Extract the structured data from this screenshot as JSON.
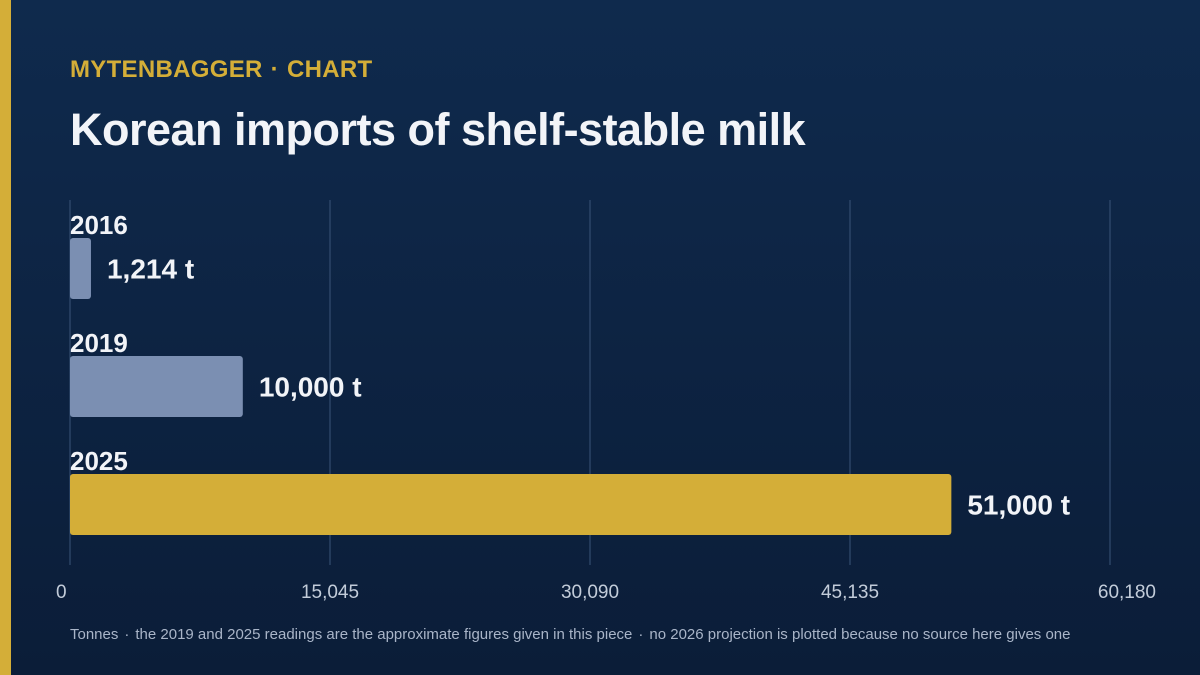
{
  "header": {
    "kicker_brand": "MYTENBAGGER",
    "kicker_separator": "·",
    "kicker_section": "CHART",
    "title": "Korean imports of shelf-stable milk"
  },
  "colors": {
    "accent": "#d4ae38",
    "bar_default": "#7b8fb2",
    "bar_highlight": "#d4ae38",
    "gridline": "#3a5478",
    "tick_label": "#c3ccd9"
  },
  "chart_data": {
    "type": "bar",
    "orientation": "horizontal",
    "categories": [
      "2016",
      "2019",
      "2025"
    ],
    "values": [
      1214,
      10000,
      51000
    ],
    "value_labels": [
      "1,214 t",
      "10,000 t",
      "51,000 t"
    ],
    "highlight_index": 2,
    "xlim": [
      0,
      60180
    ],
    "x_ticks": [
      0,
      15045,
      30090,
      45135,
      60180
    ],
    "x_tick_labels": [
      "0",
      "15,045",
      "30,090",
      "45,135",
      "60,180"
    ],
    "grid": true,
    "legend": "none"
  },
  "footnote": {
    "parts": [
      "Tonnes",
      "the 2019 and 2025 readings are the approximate figures given in this piece",
      "no 2026 projection is plotted because no source here gives one"
    ],
    "separator": "·"
  }
}
